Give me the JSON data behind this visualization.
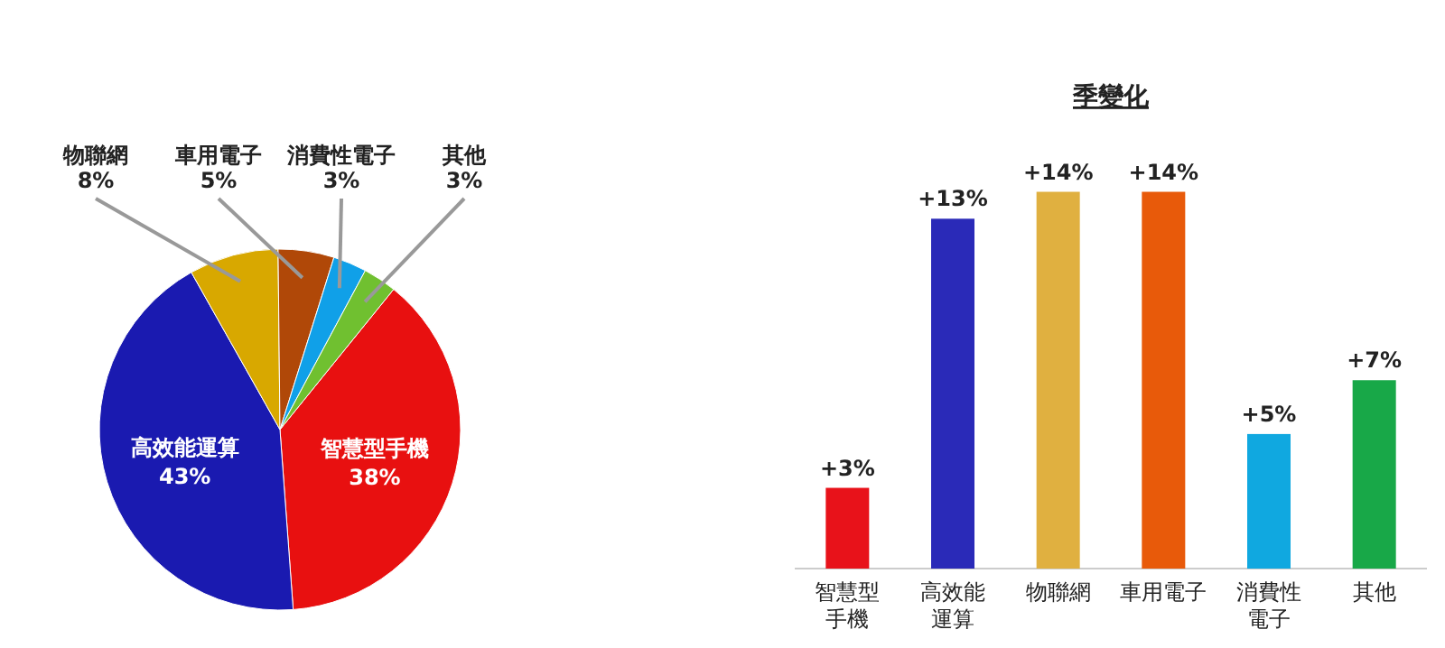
{
  "chart_data": [
    {
      "type": "pie",
      "categories": [
        "智慧型手機",
        "高效能運算",
        "物聯網",
        "車用電子",
        "消費性電子",
        "其他"
      ],
      "values": [
        38,
        43,
        8,
        5,
        3,
        3
      ],
      "colors": [
        "#e81010",
        "#1a1ab0",
        "#d8a800",
        "#b04808",
        "#10a0e8",
        "#70c030"
      ],
      "value_labels": [
        "38%",
        "43%",
        "8%",
        "5%",
        "3%",
        "3%"
      ]
    },
    {
      "type": "bar",
      "title": "季變化",
      "categories": [
        "智慧型手機",
        "高效能運算",
        "物聯網",
        "車用電子",
        "消費性電子",
        "其他"
      ],
      "values": [
        3,
        13,
        14,
        14,
        5,
        7
      ],
      "colors": [
        "#e8121a",
        "#2a2ab8",
        "#e0b040",
        "#e85a0a",
        "#10a8e0",
        "#18a848"
      ],
      "value_labels": [
        "+3%",
        "+13%",
        "+14%",
        "+14%",
        "+5%",
        "+7%"
      ]
    }
  ]
}
